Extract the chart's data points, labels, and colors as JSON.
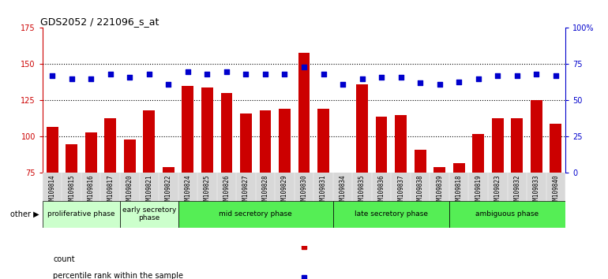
{
  "title": "GDS2052 / 221096_s_at",
  "samples": [
    "GSM109814",
    "GSM109815",
    "GSM109816",
    "GSM109817",
    "GSM109820",
    "GSM109821",
    "GSM109822",
    "GSM109824",
    "GSM109825",
    "GSM109826",
    "GSM109827",
    "GSM109828",
    "GSM109829",
    "GSM109830",
    "GSM109831",
    "GSM109834",
    "GSM109835",
    "GSM109836",
    "GSM109837",
    "GSM109838",
    "GSM109839",
    "GSM109818",
    "GSM109819",
    "GSM109823",
    "GSM109832",
    "GSM109833",
    "GSM109840"
  ],
  "counts": [
    107,
    95,
    103,
    113,
    98,
    118,
    79,
    135,
    134,
    130,
    116,
    118,
    119,
    158,
    119,
    75,
    136,
    114,
    115,
    91,
    79,
    82,
    102,
    113,
    113,
    125,
    109
  ],
  "percentiles": [
    67,
    65,
    65,
    68,
    66,
    68,
    61,
    70,
    68,
    70,
    68,
    68,
    68,
    73,
    68,
    61,
    65,
    66,
    66,
    62,
    61,
    63,
    65,
    67,
    67,
    68,
    67
  ],
  "phases": [
    {
      "label": "proliferative phase",
      "start": 0,
      "end": 4,
      "color": "#ccffcc"
    },
    {
      "label": "early secretory\nphase",
      "start": 4,
      "end": 7,
      "color": "#ccffcc"
    },
    {
      "label": "mid secretory phase",
      "start": 7,
      "end": 15,
      "color": "#55dd55"
    },
    {
      "label": "late secretory phase",
      "start": 15,
      "end": 21,
      "color": "#55dd55"
    },
    {
      "label": "ambiguous phase",
      "start": 21,
      "end": 27,
      "color": "#55dd55"
    }
  ],
  "ylim_left": [
    75,
    175
  ],
  "ylim_right": [
    0,
    100
  ],
  "bar_color": "#cc0000",
  "dot_color": "#0000cc",
  "background_color": "#ffffff",
  "tick_bg_color": "#d8d8d8",
  "dotted_line_values": [
    100,
    125,
    150
  ],
  "left_ticks": [
    75,
    100,
    125,
    150,
    175
  ],
  "left_tick_labels": [
    "75",
    "100",
    "125",
    "150",
    "175"
  ],
  "right_ticks": [
    0,
    25,
    50,
    75,
    100
  ],
  "right_tick_labels": [
    "0",
    "25",
    "50",
    "75",
    "100%"
  ]
}
